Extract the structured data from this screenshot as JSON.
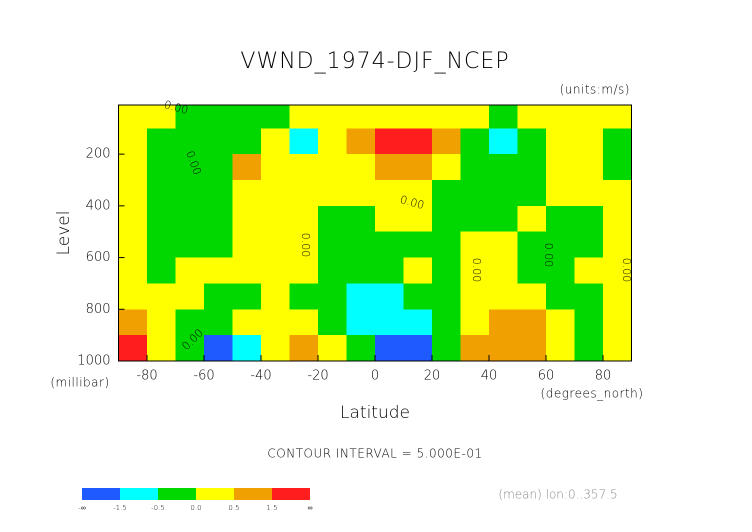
{
  "chart_data": {
    "type": "contour",
    "title": "VWND_1974-DJF_NCEP",
    "units": "(units:m/s)",
    "y_label": "Level",
    "y_unit": "(millibar)",
    "x_label": "Latitude",
    "x_unit": "(degrees_north)",
    "contour_interval": "CONTOUR INTERVAL = 5.000E-01",
    "mean_note": "(mean) lon:0..357.5",
    "contour_label": "0.00",
    "xlim": [
      -90,
      90
    ],
    "ylim": [
      1000,
      10
    ],
    "xticks": [
      -80,
      -60,
      -40,
      -20,
      0,
      20,
      40,
      60,
      80
    ],
    "yticks": [
      200,
      400,
      600,
      800,
      1000
    ],
    "x": [
      -85,
      -75,
      -65,
      -55,
      -45,
      -35,
      -25,
      -15,
      -5,
      5,
      15,
      25,
      35,
      45,
      55,
      65,
      75,
      85
    ],
    "y": [
      50,
      150,
      250,
      350,
      450,
      550,
      650,
      750,
      850,
      950
    ],
    "z": [
      [
        0.2,
        0.2,
        -0.2,
        -0.2,
        -0.2,
        -0.2,
        0.2,
        0.2,
        0.2,
        0.2,
        0.2,
        0.2,
        0.2,
        -0.2,
        0.2,
        0.2,
        0.2,
        0.2
      ],
      [
        0.2,
        -0.2,
        -0.2,
        -0.2,
        -0.2,
        0.2,
        -0.7,
        0.2,
        0.7,
        1.8,
        1.8,
        0.7,
        -0.2,
        -0.7,
        -0.2,
        0.2,
        0.2,
        -0.2
      ],
      [
        0.2,
        -0.2,
        -0.2,
        -0.2,
        0.7,
        0.2,
        0.2,
        0.2,
        0.2,
        0.7,
        0.7,
        0.2,
        -0.2,
        -0.2,
        -0.2,
        0.2,
        0.2,
        -0.2
      ],
      [
        0.2,
        -0.2,
        -0.2,
        -0.2,
        0.2,
        0.2,
        0.2,
        0.2,
        0.2,
        0.2,
        0.2,
        -0.2,
        -0.2,
        -0.2,
        -0.2,
        0.2,
        0.2,
        0.2
      ],
      [
        0.2,
        -0.2,
        -0.2,
        -0.2,
        0.2,
        0.2,
        0.2,
        -0.2,
        -0.2,
        0.2,
        0.2,
        -0.2,
        -0.2,
        -0.2,
        0.2,
        -0.2,
        -0.2,
        0.2
      ],
      [
        0.2,
        -0.2,
        -0.2,
        -0.2,
        0.2,
        0.2,
        0.2,
        -0.2,
        -0.2,
        -0.2,
        -0.2,
        -0.2,
        0.2,
        0.2,
        -0.2,
        -0.2,
        -0.2,
        0.2
      ],
      [
        0.2,
        -0.2,
        0.2,
        0.2,
        0.2,
        0.2,
        0.2,
        -0.2,
        -0.2,
        -0.2,
        0.2,
        -0.2,
        0.2,
        0.2,
        -0.2,
        -0.2,
        0.2,
        0.2
      ],
      [
        0.2,
        0.2,
        0.2,
        -0.2,
        -0.2,
        0.2,
        -0.2,
        -0.2,
        -0.7,
        -0.7,
        -0.2,
        -0.2,
        0.2,
        0.2,
        0.2,
        -0.2,
        -0.2,
        0.2
      ],
      [
        0.7,
        0.2,
        -0.2,
        -0.2,
        0.2,
        0.2,
        0.2,
        -0.2,
        -0.7,
        -0.7,
        -0.7,
        -0.2,
        0.2,
        0.7,
        0.7,
        0.2,
        -0.2,
        0.2
      ],
      [
        1.8,
        0.2,
        -0.2,
        -1.8,
        -0.7,
        0.2,
        0.7,
        0.2,
        -0.2,
        -1.8,
        -1.8,
        -0.2,
        0.7,
        0.7,
        0.7,
        0.2,
        -0.2,
        0.2
      ]
    ],
    "colorbar": {
      "ticks": [
        "-∞",
        -1.5,
        -0.5,
        {
          "value": 0,
          "label": "0.0"
        },
        0.5,
        1.5,
        "∞"
      ],
      "colors": [
        "#1e5aff",
        "#00ffff",
        "#00d800",
        "#ffff00",
        "#f0a000",
        "#ff1e1e"
      ]
    }
  }
}
